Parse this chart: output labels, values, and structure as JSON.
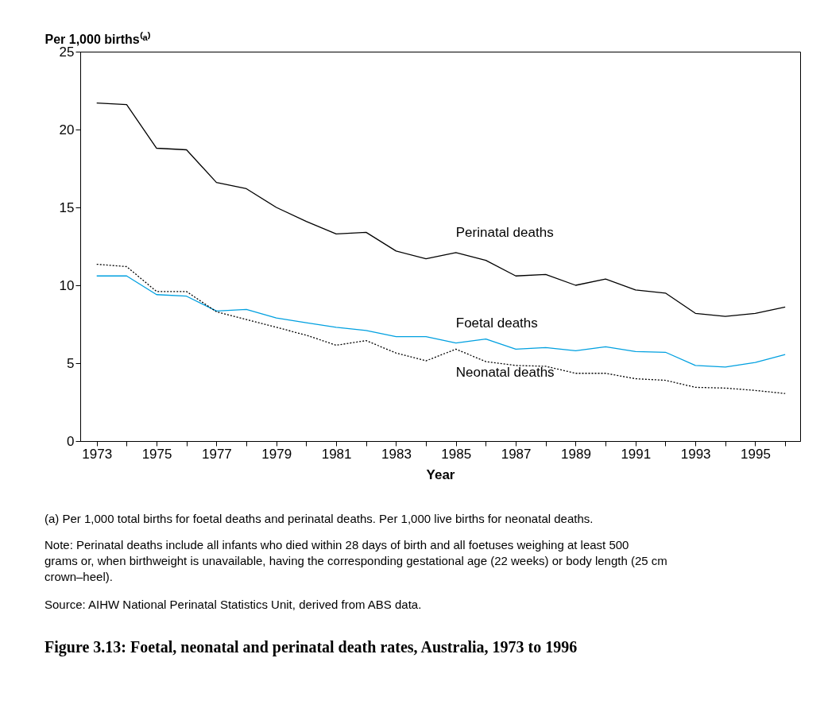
{
  "chart_data": {
    "type": "line",
    "title": "Figure 3.13: Foetal, neonatal and perinatal death rates, Australia, 1973 to 1996",
    "xlabel": "Year",
    "ylabel": "Per 1,000 births⁽ᵃ⁾",
    "x": [
      1973,
      1974,
      1975,
      1976,
      1977,
      1978,
      1979,
      1980,
      1981,
      1982,
      1983,
      1984,
      1985,
      1986,
      1987,
      1988,
      1989,
      1990,
      1991,
      1992,
      1993,
      1994,
      1995,
      1996
    ],
    "series": [
      {
        "name": "Perinatal deaths",
        "color": "#000000",
        "line_style": "solid",
        "values": [
          21.7,
          21.6,
          18.8,
          18.7,
          16.6,
          16.2,
          15.0,
          14.1,
          13.3,
          13.4,
          12.2,
          11.7,
          12.1,
          11.6,
          10.6,
          10.7,
          10.0,
          10.4,
          9.7,
          9.5,
          8.2,
          8.0,
          8.2,
          8.6
        ]
      },
      {
        "name": "Foetal deaths",
        "color": "#00a0e0",
        "line_style": "solid",
        "values": [
          10.6,
          10.6,
          9.4,
          9.3,
          8.35,
          8.45,
          7.9,
          7.6,
          7.3,
          7.1,
          6.7,
          6.7,
          6.3,
          6.55,
          5.9,
          6.0,
          5.8,
          6.05,
          5.75,
          5.7,
          4.85,
          4.75,
          5.05,
          5.55
        ]
      },
      {
        "name": "Neonatal deaths",
        "color": "#000000",
        "line_style": "dotted",
        "values": [
          11.35,
          11.2,
          9.6,
          9.6,
          8.3,
          7.8,
          7.3,
          6.8,
          6.15,
          6.45,
          5.65,
          5.15,
          5.9,
          5.1,
          4.85,
          4.8,
          4.35,
          4.35,
          4.0,
          3.9,
          3.45,
          3.4,
          3.25,
          3.05
        ]
      }
    ],
    "xlim": [
      1972.45,
      1996.5
    ],
    "xticks": [
      1973,
      {
        "value": 1974,
        "label": null
      },
      1975,
      {
        "value": 1976,
        "label": null
      },
      1977,
      {
        "value": 1978,
        "label": null
      },
      1979,
      {
        "value": 1980,
        "label": null
      },
      1981,
      {
        "value": 1982,
        "label": null
      },
      1983,
      {
        "value": 1984,
        "label": null
      },
      1985,
      {
        "value": 1986,
        "label": null
      },
      1987,
      {
        "value": 1988,
        "label": null
      },
      1989,
      {
        "value": 1990,
        "label": null
      },
      1991,
      {
        "value": 1992,
        "label": null
      },
      1993,
      {
        "value": 1994,
        "label": null
      },
      1995,
      {
        "value": 1996,
        "label": null
      }
    ],
    "ylim": [
      0,
      25
    ],
    "yticks": [
      0,
      5,
      10,
      15,
      20,
      25
    ],
    "grid": false,
    "marker": "none",
    "annotations": [
      "(a)    Per 1,000 total births for foetal deaths and perinatal deaths. Per 1,000 live births for neonatal deaths.",
      "Note: Perinatal deaths include all infants who died within 28 days of birth and all foetuses weighing at least 500 grams or, when birthweight is unavailable, having the corresponding gestational age (22 weeks) or body length (25 cm crown–heel).",
      "Source: AIHW National Perinatal Statistics Unit, derived from ABS data."
    ]
  }
}
